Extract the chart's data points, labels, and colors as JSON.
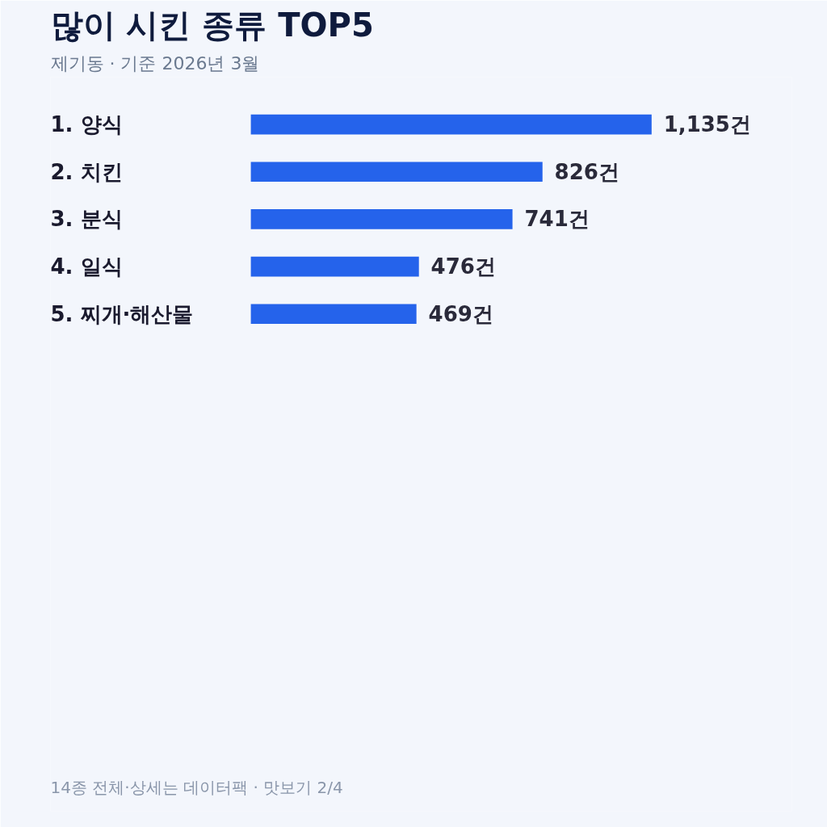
{
  "chart_data": {
    "type": "bar",
    "orientation": "horizontal",
    "title": "많이 시킨 종류 TOP5",
    "subtitle": "제기동 · 기준 2026년 3월",
    "categories": [
      "1. 양식",
      "2. 치킨",
      "3. 분식",
      "4. 일식",
      "5. 찌개·해산물"
    ],
    "values": [
      1135,
      826,
      741,
      476,
      469
    ],
    "value_labels": [
      "1,135건",
      "826건",
      "741건",
      "476건",
      "469건"
    ],
    "color": "#2563eb",
    "tick_labels": false,
    "annotations": [
      "14종 전체·상세는 데이터팩 · 맛보기 2/4"
    ]
  }
}
